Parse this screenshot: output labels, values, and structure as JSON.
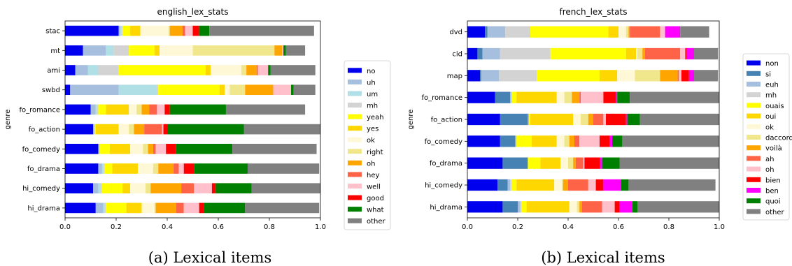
{
  "captions": [
    "(a) Lexical items",
    "(b) Lexical items"
  ],
  "chart_data": [
    {
      "type": "bar",
      "orientation": "horizontal",
      "stacked": true,
      "title": "english_lex_stats",
      "ylabel": "genre",
      "xlabel": "",
      "xlim": [
        0,
        1.0
      ],
      "xticks": [
        "0.0",
        "0.2",
        "0.4",
        "0.6",
        "0.8",
        "1.0"
      ],
      "grid": false,
      "legend_position": "right",
      "categories": [
        "stac",
        "mt",
        "ami",
        "swbd",
        "fo_romance",
        "fo_action",
        "fo_comedy",
        "fo_drama",
        "hi_comedy",
        "hi_drama"
      ],
      "series": [
        {
          "name": "no",
          "color": "#0000ee",
          "values": [
            0.21,
            0.07,
            0.04,
            0.02,
            0.1,
            0.11,
            0.13,
            0.13,
            0.11,
            0.12
          ]
        },
        {
          "name": "uh",
          "color": "#a7bfdf",
          "values": [
            0.005,
            0.09,
            0.05,
            0.19,
            0.02,
            0.005,
            0.005,
            0.015,
            0.02,
            0.03
          ]
        },
        {
          "name": "um",
          "color": "#b0e0e6",
          "values": [
            0.005,
            0.03,
            0.04,
            0.15,
            0.005,
            0.0,
            0.0,
            0.005,
            0.01,
            0.005
          ]
        },
        {
          "name": "mh",
          "color": "#d3d3d3",
          "values": [
            0.005,
            0.06,
            0.08,
            0.005,
            0.005,
            0.0,
            0.0,
            0.005,
            0.005,
            0.005
          ]
        },
        {
          "name": "yeah",
          "color": "#ffff00",
          "values": [
            0.03,
            0.1,
            0.34,
            0.24,
            0.03,
            0.005,
            0.04,
            0.03,
            0.08,
            0.08
          ]
        },
        {
          "name": "yes",
          "color": "#ffd700",
          "values": [
            0.04,
            0.02,
            0.02,
            0.02,
            0.09,
            0.09,
            0.08,
            0.1,
            0.03,
            0.06
          ]
        },
        {
          "name": "ok",
          "color": "#fff8d6",
          "values": [
            0.11,
            0.13,
            0.12,
            0.02,
            0.03,
            0.04,
            0.05,
            0.06,
            0.06,
            0.05
          ]
        },
        {
          "name": "right",
          "color": "#f0e68c",
          "values": [
            0.005,
            0.32,
            0.02,
            0.06,
            0.02,
            0.02,
            0.02,
            0.02,
            0.02,
            0.005
          ]
        },
        {
          "name": "oh",
          "color": "#ffa500",
          "values": [
            0.05,
            0.03,
            0.04,
            0.11,
            0.03,
            0.04,
            0.02,
            0.06,
            0.12,
            0.08
          ]
        },
        {
          "name": "hey",
          "color": "#ff6347",
          "values": [
            0.01,
            0.0,
            0.005,
            0.0,
            0.03,
            0.07,
            0.01,
            0.02,
            0.05,
            0.03
          ]
        },
        {
          "name": "well",
          "color": "#ffc0cb",
          "values": [
            0.03,
            0.005,
            0.04,
            0.07,
            0.03,
            0.005,
            0.04,
            0.02,
            0.07,
            0.06
          ]
        },
        {
          "name": "good",
          "color": "#ff0000",
          "values": [
            0.025,
            0.0,
            0.0,
            0.0,
            0.02,
            0.015,
            0.04,
            0.04,
            0.015,
            0.02
          ]
        },
        {
          "name": "what",
          "color": "#008000",
          "values": [
            0.04,
            0.01,
            0.01,
            0.01,
            0.22,
            0.3,
            0.22,
            0.21,
            0.14,
            0.16
          ]
        },
        {
          "name": "other",
          "color": "#808080",
          "values": [
            0.41,
            0.075,
            0.175,
            0.085,
            0.31,
            0.31,
            0.33,
            0.28,
            0.27,
            0.29
          ]
        }
      ]
    },
    {
      "type": "bar",
      "orientation": "horizontal",
      "stacked": true,
      "title": "french_lex_stats",
      "ylabel": "genre",
      "xlabel": "",
      "xlim": [
        0,
        1.0
      ],
      "xticks": [
        "0.0",
        "0.2",
        "0.4",
        "0.6",
        "0.8",
        "1.0"
      ],
      "grid": false,
      "legend_position": "right",
      "categories": [
        "dvd",
        "cid",
        "map",
        "fo_romance",
        "fo_action",
        "fo_comedy",
        "fo_drama",
        "hi_comedy",
        "hi_drama"
      ],
      "series": [
        {
          "name": "non",
          "color": "#0000ee",
          "values": [
            0.07,
            0.04,
            0.05,
            0.11,
            0.13,
            0.13,
            0.14,
            0.12,
            0.14
          ]
        },
        {
          "name": "si",
          "color": "#4682b4",
          "values": [
            0.01,
            0.02,
            0.005,
            0.06,
            0.11,
            0.06,
            0.1,
            0.04,
            0.06
          ]
        },
        {
          "name": "euh",
          "color": "#a7bfdf",
          "values": [
            0.07,
            0.07,
            0.07,
            0.005,
            0.005,
            0.005,
            0.0,
            0.01,
            0.01
          ]
        },
        {
          "name": "mh",
          "color": "#d3d3d3",
          "values": [
            0.1,
            0.2,
            0.15,
            0.0,
            0.0,
            0.0,
            0.0,
            0.005,
            0.005
          ]
        },
        {
          "name": "ouais",
          "color": "#ffff00",
          "values": [
            0.31,
            0.3,
            0.25,
            0.02,
            0.005,
            0.06,
            0.05,
            0.02,
            0.02
          ]
        },
        {
          "name": "oui",
          "color": "#ffd700",
          "values": [
            0.04,
            0.04,
            0.07,
            0.16,
            0.17,
            0.1,
            0.08,
            0.15,
            0.17
          ]
        },
        {
          "name": "ok",
          "color": "#fff8d6",
          "values": [
            0.03,
            0.005,
            0.07,
            0.03,
            0.03,
            0.03,
            0.03,
            0.03,
            0.03
          ]
        },
        {
          "name": "daccord",
          "color": "#f0e68c",
          "values": [
            0.01,
            0.02,
            0.1,
            0.03,
            0.03,
            0.02,
            0.02,
            0.005,
            0.01
          ]
        },
        {
          "name": "voilà",
          "color": "#ffa500",
          "values": [
            0.005,
            0.01,
            0.07,
            0.03,
            0.02,
            0.02,
            0.01,
            0.02,
            0.01
          ]
        },
        {
          "name": "ah",
          "color": "#ff6347",
          "values": [
            0.12,
            0.14,
            0.005,
            0.005,
            0.04,
            0.02,
            0.03,
            0.08,
            0.08
          ]
        },
        {
          "name": "oh",
          "color": "#ffc0cb",
          "values": [
            0.02,
            0.02,
            0.01,
            0.09,
            0.01,
            0.08,
            0.005,
            0.03,
            0.05
          ]
        },
        {
          "name": "bien",
          "color": "#ff0000",
          "values": [
            0.0,
            0.005,
            0.03,
            0.05,
            0.08,
            0.04,
            0.06,
            0.03,
            0.02
          ]
        },
        {
          "name": "ben",
          "color": "#ff00ff",
          "values": [
            0.06,
            0.03,
            0.02,
            0.005,
            0.005,
            0.01,
            0.01,
            0.07,
            0.05
          ]
        },
        {
          "name": "quoi",
          "color": "#008000",
          "values": [
            0.0,
            0.0,
            0.0,
            0.05,
            0.05,
            0.04,
            0.07,
            0.03,
            0.02
          ]
        },
        {
          "name": "other",
          "color": "#808080",
          "values": [
            0.115,
            0.095,
            0.095,
            0.36,
            0.315,
            0.385,
            0.395,
            0.345,
            0.33
          ]
        }
      ]
    }
  ]
}
